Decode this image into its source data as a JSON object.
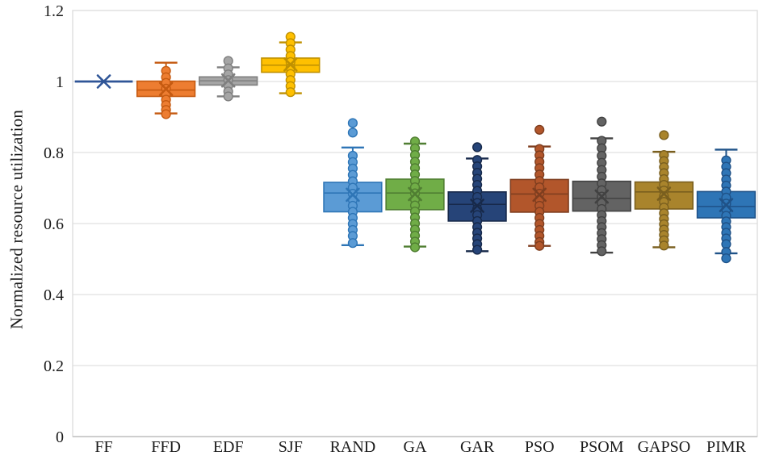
{
  "chart_data": {
    "type": "boxplot",
    "title": "",
    "xlabel": "",
    "ylabel": "Normalized resource utilization",
    "ylim": [
      0,
      1.2
    ],
    "y_tick_values": [
      0,
      0.2,
      0.4,
      0.6,
      0.8,
      1,
      1.2
    ],
    "y_tick_labels": [
      "0",
      "0.2",
      "0.4",
      "0.6",
      "0.8",
      "1",
      "1.2"
    ],
    "grid": "horizontal",
    "legend": "none",
    "background": "#ffffff",
    "grid_color": "#d9d9d9",
    "axis_color": "#bfbfbf",
    "text_color": "#1a1a1a",
    "categories": [
      "FF",
      "FFD",
      "EDF",
      "SJF",
      "RAND",
      "GA",
      "GAR",
      "PSO",
      "PSOM",
      "GAPSO",
      "PIMR"
    ],
    "series": [
      {
        "label": "FF",
        "fill": "#4472C4",
        "stroke": "#2F5597",
        "q1": 1.0,
        "median": 1.0,
        "q3": 1.0,
        "whisker_low": 1.0,
        "whisker_high": 1.0,
        "mean": 1.0,
        "points": []
      },
      {
        "label": "FFD",
        "fill": "#ED7D31",
        "stroke": "#C55A11",
        "q1": 0.958,
        "median": 0.976,
        "q3": 1.001,
        "whisker_low": 0.91,
        "whisker_high": 1.053,
        "mean": 0.979,
        "points": [
          1.03,
          1.012,
          0.996,
          0.98,
          0.964,
          0.949,
          0.934,
          0.92,
          0.908
        ]
      },
      {
        "label": "EDF",
        "fill": "#A5A5A5",
        "stroke": "#7F7F7F",
        "q1": 0.99,
        "median": 1.002,
        "q3": 1.013,
        "whisker_low": 0.958,
        "whisker_high": 1.04,
        "mean": 1.003,
        "points": [
          1.058,
          1.037,
          1.02,
          1.004,
          0.988,
          0.972,
          0.958
        ]
      },
      {
        "label": "SJF",
        "fill": "#FFC000",
        "stroke": "#BF9000",
        "q1": 1.026,
        "median": 1.046,
        "q3": 1.066,
        "whisker_low": 0.967,
        "whisker_high": 1.11,
        "mean": 1.048,
        "points": [
          1.126,
          1.108,
          1.09,
          1.072,
          1.055,
          1.038,
          1.021,
          1.004,
          0.987,
          0.97
        ]
      },
      {
        "label": "RAND",
        "fill": "#5B9BD5",
        "stroke": "#2E75B6",
        "q1": 0.633,
        "median": 0.686,
        "q3": 0.716,
        "whisker_low": 0.539,
        "whisker_high": 0.814,
        "mean": 0.681,
        "points": [
          0.883,
          0.856,
          0.791,
          0.773,
          0.755,
          0.737,
          0.719,
          0.701,
          0.684,
          0.667,
          0.65,
          0.633,
          0.616,
          0.599,
          0.582,
          0.565,
          0.545
        ]
      },
      {
        "label": "GA",
        "fill": "#70AD47",
        "stroke": "#507E32",
        "q1": 0.639,
        "median": 0.686,
        "q3": 0.725,
        "whisker_low": 0.535,
        "whisker_high": 0.825,
        "mean": 0.683,
        "points": [
          0.831,
          0.812,
          0.793,
          0.774,
          0.756,
          0.738,
          0.72,
          0.702,
          0.685,
          0.668,
          0.651,
          0.634,
          0.617,
          0.6,
          0.583,
          0.566,
          0.549,
          0.533
        ]
      },
      {
        "label": "GAR",
        "fill": "#264478",
        "stroke": "#17294A",
        "q1": 0.607,
        "median": 0.654,
        "q3": 0.689,
        "whisker_low": 0.522,
        "whisker_high": 0.783,
        "mean": 0.65,
        "points": [
          0.815,
          0.779,
          0.761,
          0.743,
          0.726,
          0.709,
          0.692,
          0.675,
          0.658,
          0.641,
          0.624,
          0.607,
          0.59,
          0.574,
          0.558,
          0.542,
          0.526
        ]
      },
      {
        "label": "PSO",
        "fill": "#B2562B",
        "stroke": "#7F3E1F",
        "q1": 0.632,
        "median": 0.683,
        "q3": 0.724,
        "whisker_low": 0.537,
        "whisker_high": 0.817,
        "mean": 0.681,
        "points": [
          0.864,
          0.81,
          0.792,
          0.774,
          0.756,
          0.738,
          0.72,
          0.702,
          0.684,
          0.667,
          0.65,
          0.633,
          0.616,
          0.599,
          0.582,
          0.565,
          0.548,
          0.537
        ]
      },
      {
        "label": "PSOM",
        "fill": "#636363",
        "stroke": "#424242",
        "q1": 0.635,
        "median": 0.671,
        "q3": 0.719,
        "whisker_low": 0.518,
        "whisker_high": 0.84,
        "mean": 0.676,
        "points": [
          0.887,
          0.833,
          0.812,
          0.791,
          0.771,
          0.751,
          0.732,
          0.713,
          0.694,
          0.676,
          0.658,
          0.641,
          0.624,
          0.607,
          0.59,
          0.573,
          0.556,
          0.539,
          0.522
        ]
      },
      {
        "label": "GAPSO",
        "fill": "#A9842C",
        "stroke": "#7A5F1E",
        "q1": 0.641,
        "median": 0.689,
        "q3": 0.717,
        "whisker_low": 0.533,
        "whisker_high": 0.802,
        "mean": 0.684,
        "points": [
          0.849,
          0.793,
          0.776,
          0.759,
          0.742,
          0.725,
          0.709,
          0.693,
          0.677,
          0.661,
          0.645,
          0.629,
          0.613,
          0.598,
          0.583,
          0.568,
          0.553,
          0.538
        ]
      },
      {
        "label": "PIMR",
        "fill": "#2E75B6",
        "stroke": "#1F5288",
        "q1": 0.616,
        "median": 0.648,
        "q3": 0.69,
        "whisker_low": 0.516,
        "whisker_high": 0.808,
        "mean": 0.652,
        "points": [
          0.778,
          0.76,
          0.742,
          0.724,
          0.707,
          0.69,
          0.673,
          0.656,
          0.639,
          0.622,
          0.606,
          0.59,
          0.574,
          0.558,
          0.542,
          0.52,
          0.502
        ]
      }
    ]
  }
}
